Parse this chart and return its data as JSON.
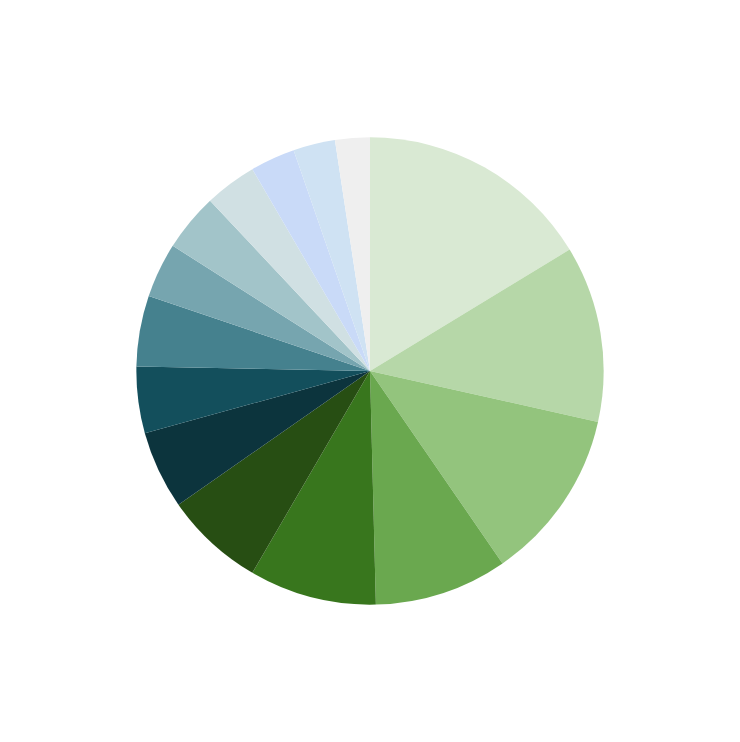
{
  "chart_data": {
    "type": "pie",
    "categories": [
      null,
      null,
      null,
      null,
      null,
      null,
      null,
      null,
      null,
      null,
      null,
      null,
      null,
      null,
      null
    ],
    "values": [
      16.3,
      12.2,
      11.9,
      9.2,
      8.8,
      6.9,
      5.4,
      4.6,
      4.9,
      3.8,
      4.0,
      3.6,
      3.1,
      2.9,
      2.4
    ],
    "colors": [
      "#d9e9d3",
      "#b6d7a8",
      "#93c47d",
      "#6aa84f",
      "#38761d",
      "#274e13",
      "#0c343d",
      "#134f5c",
      "#45818e",
      "#76a5af",
      "#a2c4c9",
      "#d0e0e3",
      "#c9daf8",
      "#cfe2f3",
      "#efefef"
    ]
  }
}
